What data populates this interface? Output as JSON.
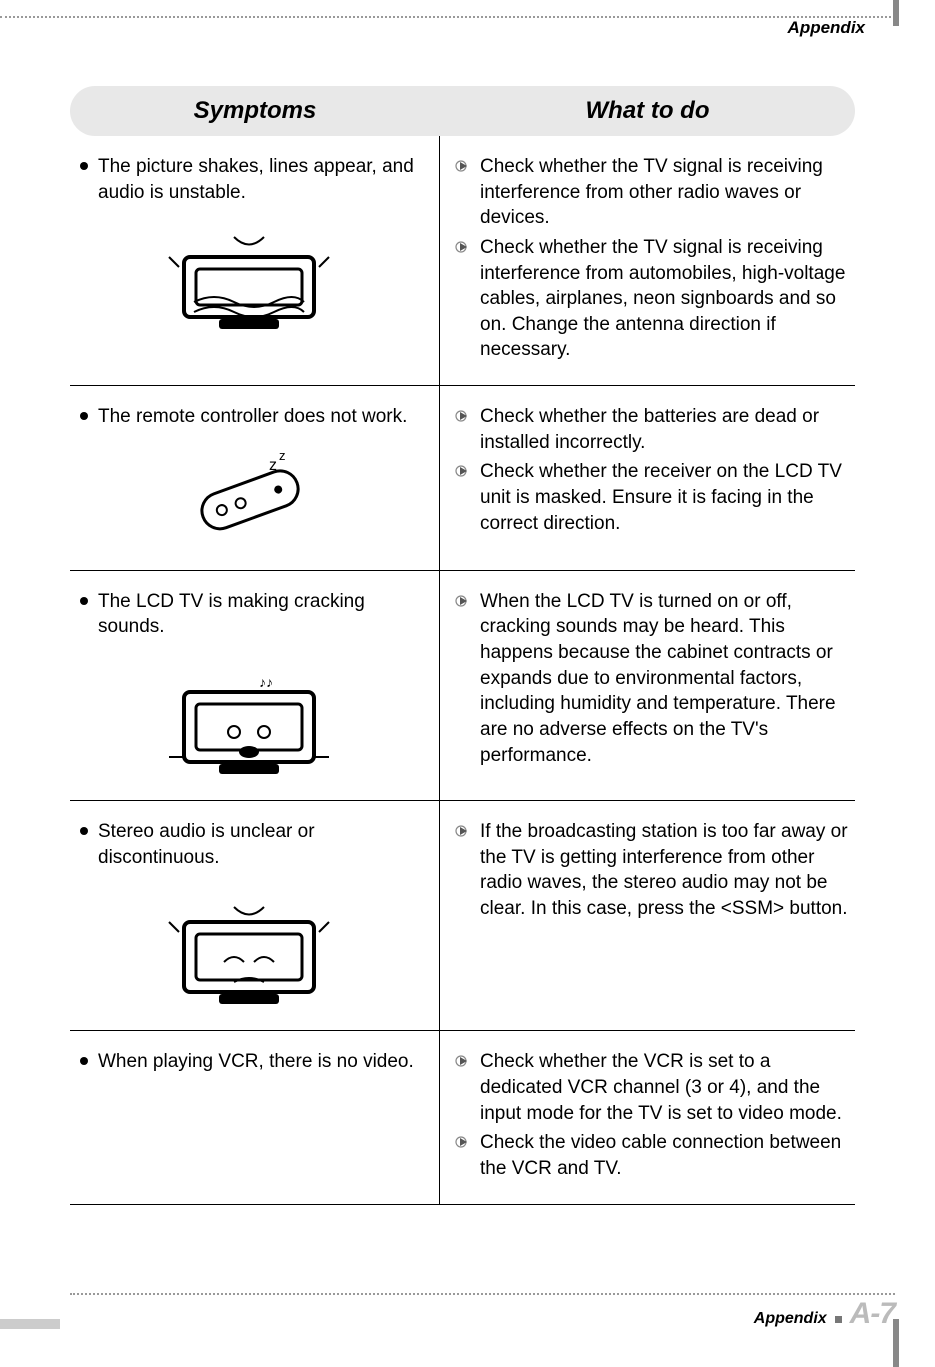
{
  "header": {
    "section_label": "Appendix"
  },
  "table": {
    "columns": {
      "left": "Symptoms",
      "right": "What to do"
    },
    "colors": {
      "header_bg": "#e8e8e8",
      "border": "#000000",
      "text": "#000000",
      "footer_page_color": "#bbbbbb",
      "dotted_border": "#999999"
    },
    "rows": [
      {
        "symptom": "The picture shakes, lines appear, and audio is unstable.",
        "illustration": "tv-shaking",
        "actions": [
          "Check whether the TV signal is receiving interference from other radio waves or devices.",
          "Check whether the TV signal is receiving interference from automobiles, high-voltage cables, airplanes, neon signboards and so on. Change the antenna direction if necessary."
        ]
      },
      {
        "symptom": "The remote controller does not work.",
        "illustration": "remote-sleeping",
        "actions": [
          "Check whether the batteries are dead or installed incorrectly.",
          "Check whether the receiver on the LCD TV unit is masked. Ensure it is facing in the correct direction."
        ]
      },
      {
        "symptom": "The LCD TV is making cracking sounds.",
        "illustration": "tv-cracking",
        "actions": [
          "When the LCD TV is turned on or off, cracking sounds may be heard. This happens because the cabinet contracts or expands due to environmental factors, including humidity and temperature. There are no adverse effects on the TV's performance."
        ]
      },
      {
        "symptom": "Stereo audio is unclear or discontinuous.",
        "illustration": "tv-audio-sad",
        "actions": [
          "If the broadcasting station is too far away or the TV is getting interference from other radio waves, the stereo audio may not be clear. In this case, press the <SSM> button."
        ]
      },
      {
        "symptom": "When playing VCR, there is no video.",
        "illustration": "none",
        "actions": [
          "Check whether the VCR is set to a dedicated VCR channel (3 or 4), and the input mode for the TV is set to video mode.",
          "Check the video cable connection between the VCR and TV."
        ]
      }
    ]
  },
  "footer": {
    "label": "Appendix",
    "page": "A-7"
  },
  "illustration_heights": {
    "tv-shaking": 120,
    "remote-sleeping": 110,
    "tv-cracking": 130,
    "tv-audio-sad": 130,
    "none": 0
  }
}
